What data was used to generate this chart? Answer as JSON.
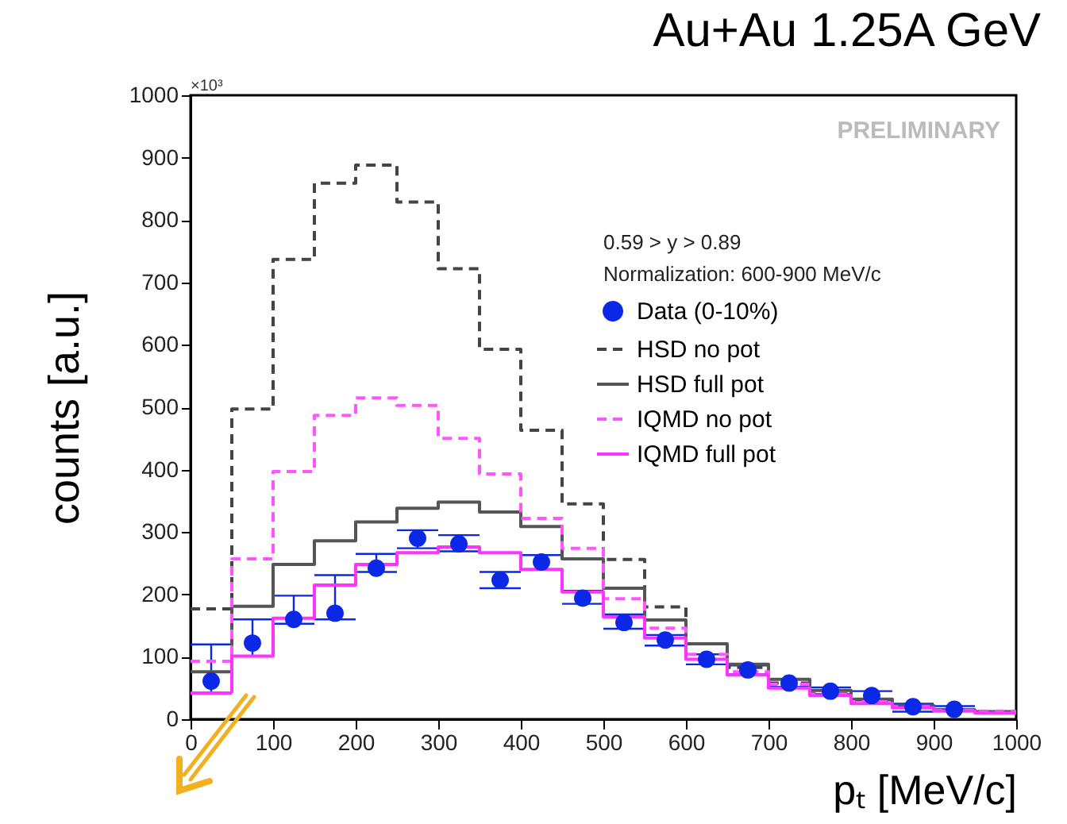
{
  "chart_data": {
    "type": "histogram",
    "title": "Au+Au 1.25A GeV",
    "xlabel": "pₜ [MeV/c]",
    "ylabel": "counts [a.u.]",
    "bins": [
      0,
      50,
      100,
      150,
      200,
      250,
      300,
      350,
      400,
      450,
      500,
      550,
      600,
      650,
      700,
      750,
      800,
      850,
      900,
      950,
      1000
    ],
    "xlim": [
      0,
      1000
    ],
    "xticks": [
      0,
      100,
      200,
      300,
      400,
      500,
      600,
      700,
      800,
      900,
      1000
    ],
    "ylim": [
      0,
      1000
    ],
    "yticks": [
      0,
      100,
      200,
      300,
      400,
      500,
      600,
      700,
      800,
      900,
      1000
    ],
    "legend": "top right",
    "annotations": [
      "×10³",
      "PRELIMINARY",
      "0.59 > y > 0.89",
      "Normalization: 600-900 MeV/c"
    ],
    "series": [
      {
        "name": "Data (0-10%)",
        "type": "scatter",
        "marker": "circle",
        "color": "#0a28e6",
        "x": [
          25,
          75,
          125,
          175,
          225,
          275,
          325,
          375,
          425,
          475,
          525,
          575,
          625,
          675,
          725,
          775,
          825,
          875,
          925
        ],
        "values": [
          61,
          122,
          160,
          170,
          242,
          290,
          281,
          223,
          252,
          194,
          155,
          127,
          96,
          79,
          58,
          45,
          38,
          20,
          16
        ],
        "errors": [
          [
            42,
            120
          ],
          [
            101,
            160
          ],
          [
            153,
            198
          ],
          [
            160,
            231
          ],
          [
            236,
            265
          ],
          [
            274,
            303
          ],
          [
            269,
            295
          ],
          [
            210,
            236
          ],
          [
            240,
            263
          ],
          [
            185,
            206
          ],
          [
            145,
            168
          ],
          [
            118,
            135
          ],
          [
            88,
            104
          ],
          [
            72,
            86
          ],
          [
            52,
            64
          ],
          [
            40,
            51
          ],
          [
            30,
            45
          ],
          [
            12,
            25
          ],
          [
            16,
            21
          ]
        ]
      },
      {
        "name": "HSD no pot",
        "color": "#444444",
        "line_style": "dashed",
        "values": [
          177,
          497,
          737,
          859,
          888,
          829,
          722,
          593,
          463,
          345,
          256,
          180,
          121,
          83,
          58,
          41,
          29,
          20,
          14,
          12
        ]
      },
      {
        "name": "HSD full pot",
        "color": "#555555",
        "line_style": "solid",
        "values": [
          76,
          181,
          248,
          286,
          316,
          338,
          348,
          332,
          309,
          257,
          210,
          159,
          121,
          88,
          64,
          46,
          32,
          22,
          15,
          12
        ]
      },
      {
        "name": "IQMD no pot",
        "color": "#ff55ff",
        "line_style": "dashed",
        "values": [
          93,
          257,
          397,
          487,
          515,
          503,
          450,
          393,
          322,
          274,
          193,
          146,
          104,
          76,
          56,
          40,
          28,
          20,
          14,
          12
        ]
      },
      {
        "name": "IQMD full pot",
        "color": "#ff33ff",
        "line_style": "solid",
        "values": [
          42,
          101,
          162,
          215,
          248,
          267,
          276,
          267,
          240,
          204,
          164,
          130,
          96,
          71,
          50,
          38,
          25,
          18,
          13,
          10
        ]
      }
    ]
  }
}
